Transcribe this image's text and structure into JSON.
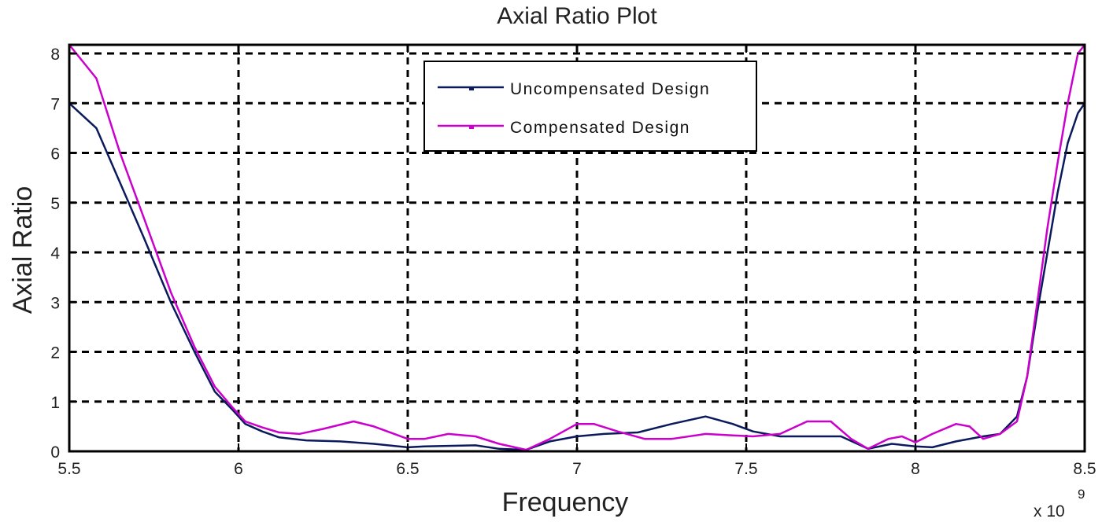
{
  "chart_data": {
    "type": "line",
    "title": "Axial Ratio Plot",
    "xlabel": "Frequency",
    "ylabel": "Axial Ratio",
    "x_exponent_label": "x 10",
    "x_exponent_power": "9",
    "xlim": [
      5.5,
      8.5
    ],
    "ylim": [
      0,
      8.2
    ],
    "grid": true,
    "grid_style": "dashed",
    "legend_position": "upper center",
    "x_ticks": [
      5.5,
      6,
      6.5,
      7,
      7.5,
      8,
      8.5
    ],
    "x_tick_labels": [
      "5.5",
      "6",
      "6.5",
      "7",
      "7.5",
      "8",
      "8.5"
    ],
    "y_ticks": [
      0,
      1,
      2,
      3,
      4,
      5,
      6,
      7,
      8
    ],
    "y_tick_labels": [
      "0",
      "1",
      "2",
      "3",
      "4",
      "5",
      "6",
      "7",
      "8"
    ],
    "series": [
      {
        "name": "Uncompensated Design",
        "color": "#0a1a5c",
        "x": [
          5.5,
          5.58,
          5.65,
          5.72,
          5.8,
          5.87,
          5.93,
          5.98,
          6.02,
          6.07,
          6.12,
          6.2,
          6.3,
          6.4,
          6.5,
          6.55,
          6.7,
          6.77,
          6.85,
          6.92,
          7.0,
          7.08,
          7.18,
          7.28,
          7.38,
          7.46,
          7.52,
          7.6,
          7.7,
          7.78,
          7.86,
          7.93,
          8.0,
          8.05,
          8.12,
          8.2,
          8.25,
          8.3,
          8.33,
          8.36,
          8.39,
          8.42,
          8.45,
          8.48,
          8.5
        ],
        "values": [
          7.0,
          6.5,
          5.4,
          4.3,
          3.0,
          2.0,
          1.2,
          0.85,
          0.55,
          0.4,
          0.28,
          0.22,
          0.2,
          0.15,
          0.08,
          0.1,
          0.12,
          0.05,
          0.03,
          0.2,
          0.3,
          0.35,
          0.38,
          0.55,
          0.7,
          0.55,
          0.4,
          0.3,
          0.3,
          0.3,
          0.05,
          0.15,
          0.1,
          0.08,
          0.2,
          0.3,
          0.35,
          0.7,
          1.5,
          2.8,
          4.0,
          5.2,
          6.2,
          6.8,
          7.0
        ]
      },
      {
        "name": "Compensated Design",
        "color": "#cc00cc",
        "x": [
          5.5,
          5.58,
          5.65,
          5.72,
          5.8,
          5.87,
          5.93,
          5.98,
          6.02,
          6.07,
          6.12,
          6.18,
          6.25,
          6.34,
          6.4,
          6.5,
          6.55,
          6.62,
          6.7,
          6.77,
          6.85,
          6.92,
          7.0,
          7.05,
          7.12,
          7.2,
          7.28,
          7.38,
          7.46,
          7.52,
          7.6,
          7.68,
          7.75,
          7.81,
          7.86,
          7.92,
          7.96,
          8.0,
          8.05,
          8.12,
          8.16,
          8.2,
          8.25,
          8.3,
          8.33,
          8.36,
          8.39,
          8.42,
          8.45,
          8.48,
          8.5
        ],
        "values": [
          8.2,
          7.5,
          6.0,
          4.7,
          3.2,
          2.1,
          1.3,
          0.9,
          0.6,
          0.48,
          0.38,
          0.35,
          0.45,
          0.6,
          0.5,
          0.25,
          0.25,
          0.35,
          0.3,
          0.15,
          0.03,
          0.25,
          0.55,
          0.55,
          0.4,
          0.25,
          0.25,
          0.35,
          0.32,
          0.3,
          0.35,
          0.6,
          0.6,
          0.25,
          0.05,
          0.25,
          0.3,
          0.18,
          0.35,
          0.55,
          0.5,
          0.25,
          0.35,
          0.6,
          1.5,
          3.0,
          4.5,
          5.8,
          7.0,
          8.0,
          8.2
        ]
      }
    ]
  },
  "legend": {
    "items": [
      {
        "label": "Uncompensated Design",
        "color": "#0a1a5c"
      },
      {
        "label": "Compensated Design",
        "color": "#cc00cc"
      }
    ]
  }
}
